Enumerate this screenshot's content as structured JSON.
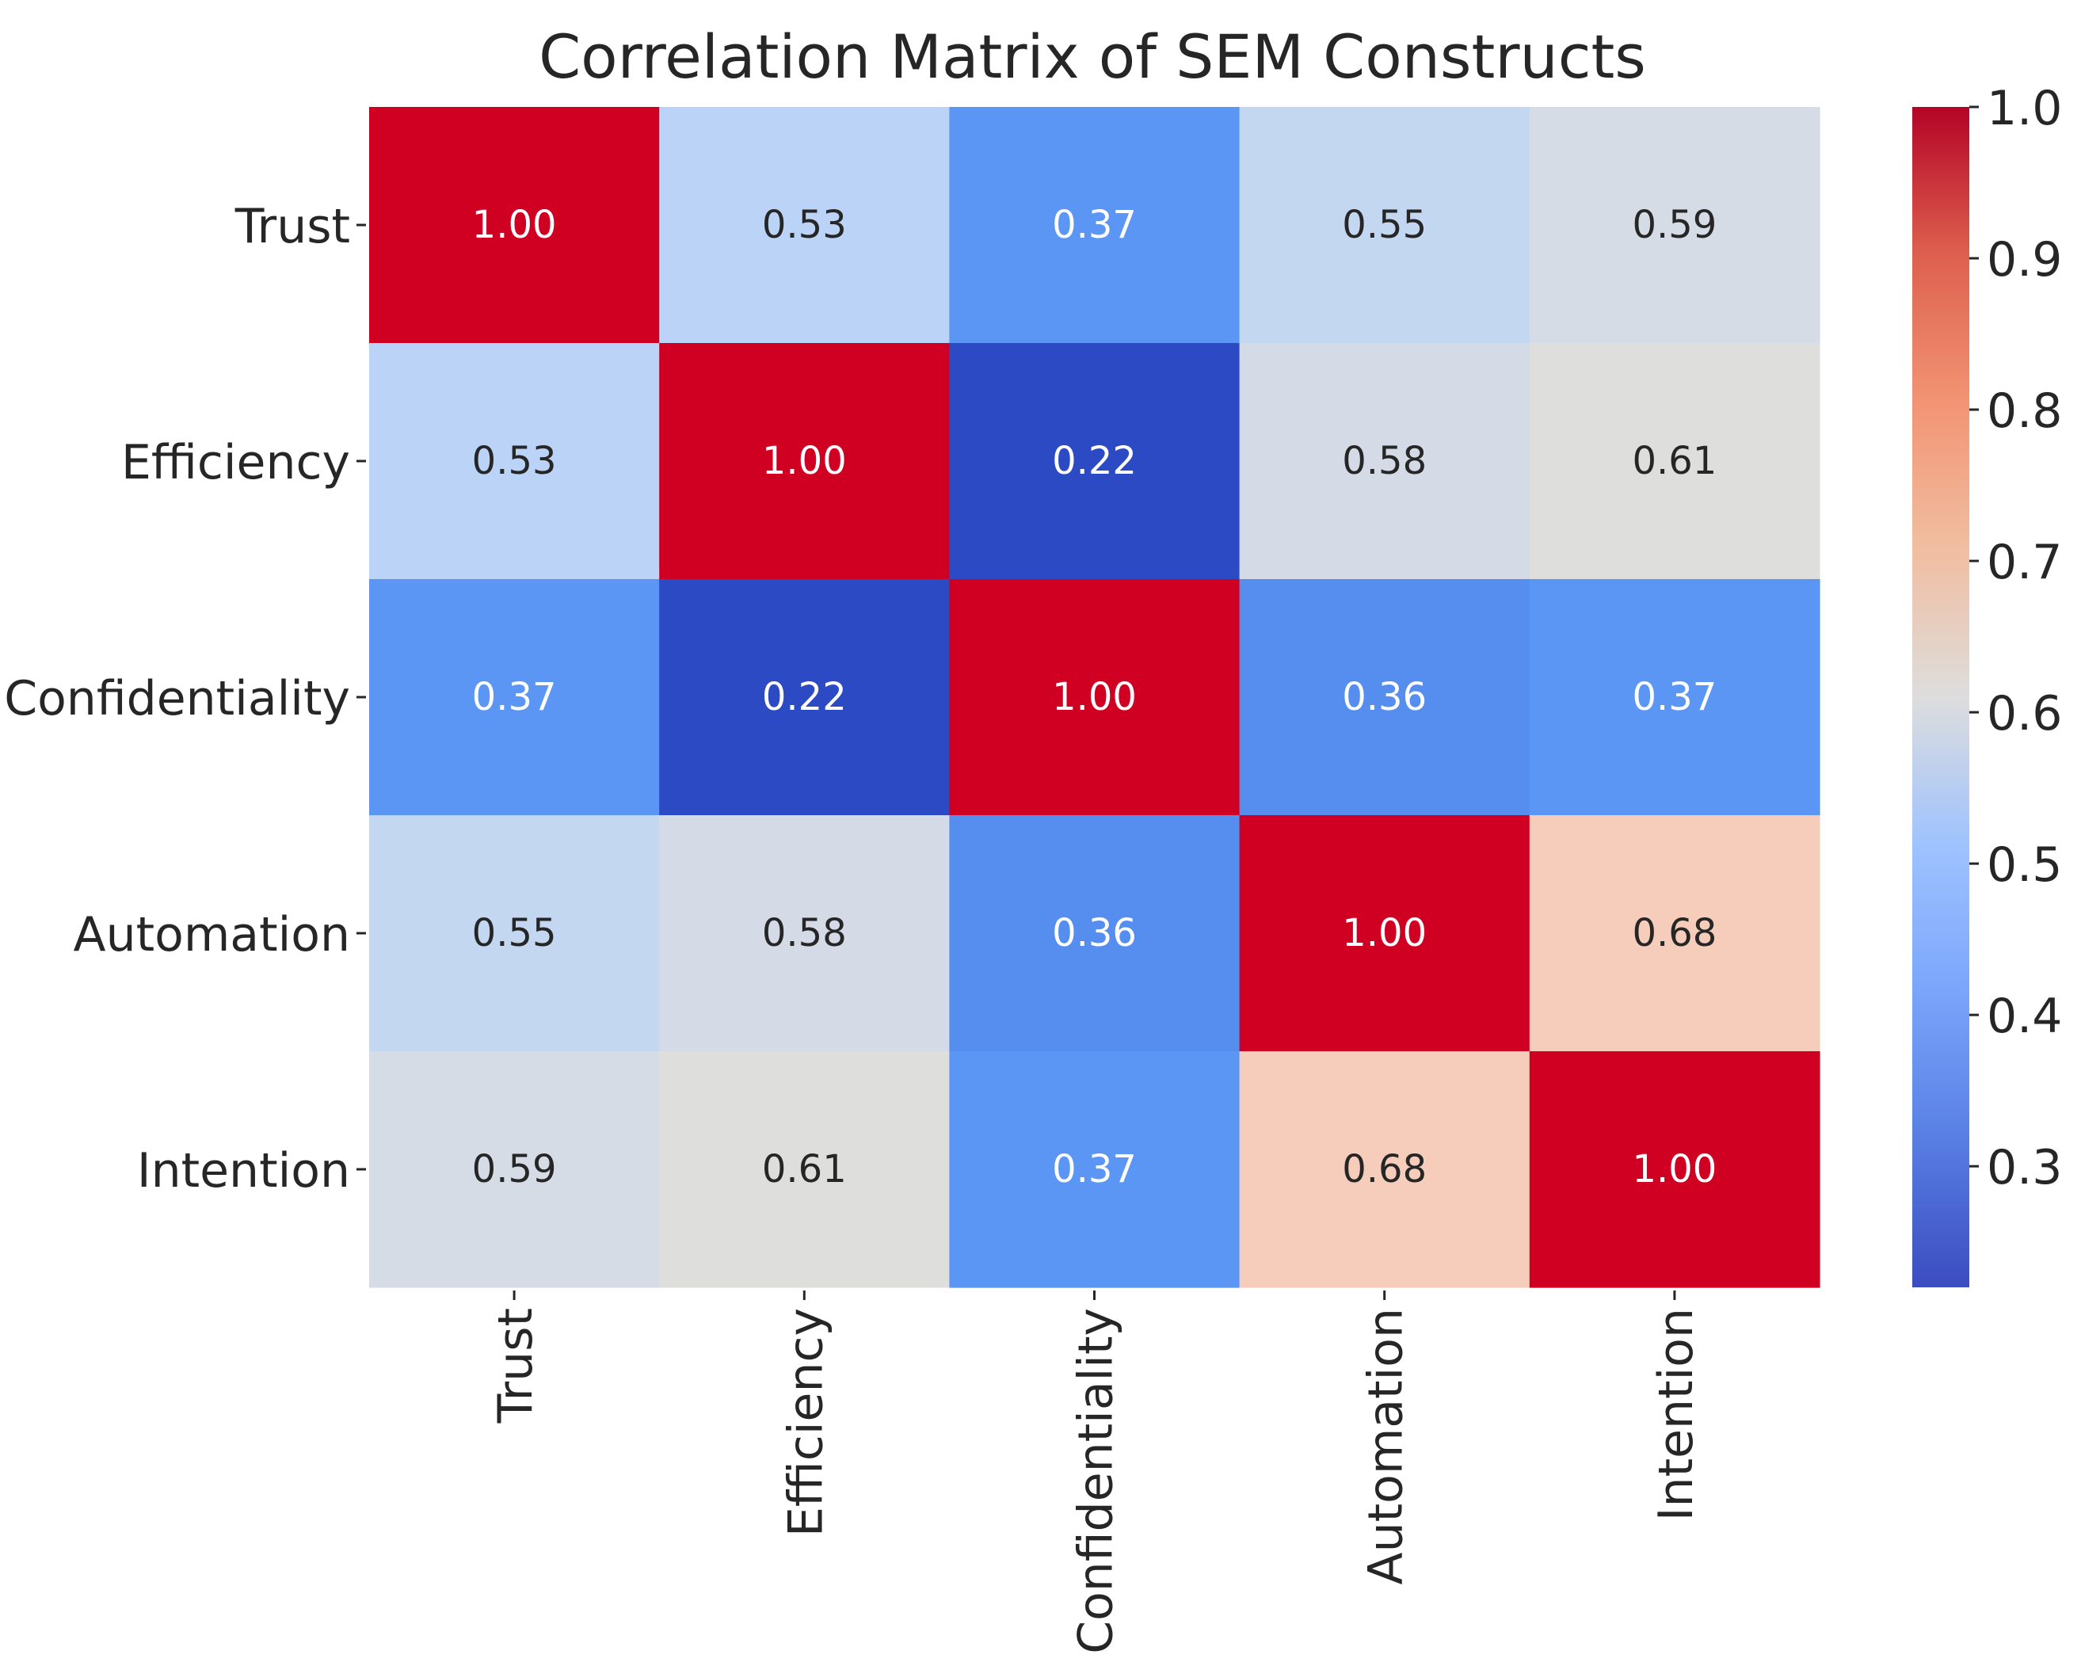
{
  "chart_data": {
    "type": "heatmap",
    "title": "Correlation Matrix of SEM Constructs",
    "xlabel": "",
    "ylabel": "",
    "row_labels": [
      "Trust",
      "Efficiency",
      "Confidentiality",
      "Automation",
      "Intention"
    ],
    "column_labels": [
      "Trust",
      "Efficiency",
      "Confidentiality",
      "Automation",
      "Intention"
    ],
    "values": [
      [
        1.0,
        0.53,
        0.37,
        0.55,
        0.59
      ],
      [
        0.53,
        1.0,
        0.22,
        0.58,
        0.61
      ],
      [
        0.37,
        0.22,
        1.0,
        0.36,
        0.37
      ],
      [
        0.55,
        0.58,
        0.36,
        1.0,
        0.68
      ],
      [
        0.59,
        0.61,
        0.37,
        0.68,
        1.0
      ]
    ],
    "value_format": "0.00",
    "colormap": "coolwarm",
    "color_range": [
      0.22,
      1.0
    ],
    "colorbar": {
      "ticks": [
        0.3,
        0.4,
        0.5,
        0.6,
        0.7,
        0.8,
        0.9,
        1.0
      ],
      "tick_labels": [
        "0.3",
        "0.4",
        "0.5",
        "0.6",
        "0.7",
        "0.8",
        "0.9",
        "1.0"
      ],
      "placement": "right"
    },
    "annotation_colors": {
      "light_text": "#ffffff",
      "dark_text": "#262626"
    }
  }
}
